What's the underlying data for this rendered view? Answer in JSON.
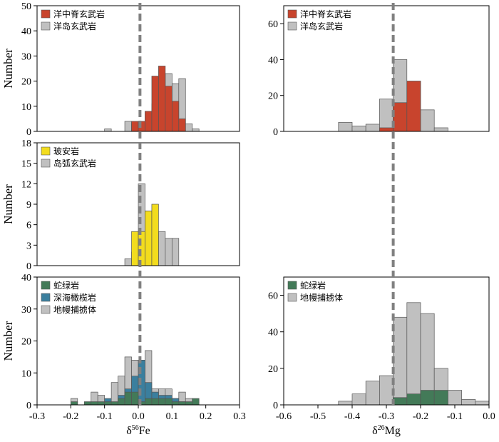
{
  "colors": {
    "mid_ocean_ridge": "#c8442d",
    "ocean_island": "#c0c0c0",
    "boninite": "#f2dc1e",
    "island_arc": "#c0c0c0",
    "ophiolite": "#437a58",
    "abyssal_peridotite": "#3b7f9e",
    "mantle_xenolith": "#c0c0c0",
    "ref_line": "#808080"
  },
  "x_axis_labels": {
    "fe": "δ56Fe",
    "mg": "δ26Mg"
  },
  "chart_data": [
    {
      "id": "fe_basalt",
      "type": "bar",
      "subtype": "stacked-histogram",
      "ylabel": "Number",
      "xlim": [
        -0.3,
        0.3
      ],
      "ylim": [
        0,
        50
      ],
      "yticks": [
        0,
        10,
        20,
        30,
        40,
        50
      ],
      "legend": [
        "洋中脊玄武岩",
        "洋岛玄武岩"
      ],
      "legend_placement": "top-left",
      "bin_width": 0.02,
      "series": [
        {
          "name": "洋中脊玄武岩",
          "color_key": "mid_ocean_ridge",
          "bins": [
            -0.02,
            0.0,
            0.02,
            0.04,
            0.06,
            0.08,
            0.1,
            0.12
          ],
          "values": [
            4,
            4,
            8,
            22,
            26,
            18,
            12,
            5
          ]
        },
        {
          "name": "洋岛玄武岩",
          "color_key": "ocean_island",
          "bins": [
            -0.1,
            -0.04,
            -0.02,
            0.0,
            0.02,
            0.04,
            0.06,
            0.08,
            0.1,
            0.12,
            0.14,
            0.16
          ],
          "values": [
            1,
            4,
            3,
            2,
            8,
            11,
            7,
            23,
            19,
            21,
            3,
            1
          ]
        }
      ]
    },
    {
      "id": "fe_arc",
      "type": "bar",
      "subtype": "stacked-histogram",
      "ylabel": "Number",
      "xlim": [
        -0.3,
        0.3
      ],
      "ylim": [
        0,
        18
      ],
      "yticks": [
        0,
        3,
        6,
        9,
        12,
        15,
        18
      ],
      "legend": [
        "玻安岩",
        "岛弧玄武岩"
      ],
      "legend_placement": "top-left",
      "bin_width": 0.02,
      "series": [
        {
          "name": "玻安岩",
          "color_key": "boninite",
          "bins": [
            -0.02,
            0.0,
            0.02,
            0.04
          ],
          "values": [
            5,
            5,
            8,
            9
          ]
        },
        {
          "name": "岛弧玄武岩",
          "color_key": "island_arc",
          "bins": [
            -0.04,
            -0.02,
            0.0,
            0.02,
            0.04,
            0.06,
            0.08,
            0.1
          ],
          "values": [
            1,
            2,
            12,
            8,
            3,
            5,
            4,
            4
          ]
        }
      ]
    },
    {
      "id": "fe_mantle",
      "type": "bar",
      "subtype": "stacked-histogram",
      "ylabel": "Number",
      "xlabel_key": "fe",
      "xlim": [
        -0.3,
        0.3
      ],
      "ylim": [
        0,
        40
      ],
      "yticks": [
        0,
        10,
        20,
        30,
        40
      ],
      "xticks": [
        "-0.3",
        "-0.2",
        "-0.1",
        "0.0",
        "0.1",
        "0.2",
        "0.3"
      ],
      "legend": [
        "蛇绿岩",
        "深海橄榄岩",
        "地幔捕掳体"
      ],
      "legend_placement": "top-left",
      "bin_width": 0.02,
      "series": [
        {
          "name": "蛇绿岩",
          "color_key": "ophiolite",
          "bins": [
            -0.2,
            -0.18,
            -0.16,
            -0.14,
            -0.12,
            -0.1,
            -0.08,
            -0.06,
            -0.04,
            -0.02,
            0.0,
            0.02,
            0.04,
            0.06,
            0.08,
            0.1,
            0.12,
            0.14,
            0.16
          ],
          "values": [
            1,
            0,
            1,
            1,
            1,
            1,
            1,
            2,
            4,
            4,
            1,
            2,
            2,
            2,
            2,
            1,
            1,
            1,
            2
          ]
        },
        {
          "name": "深海橄榄岩",
          "color_key": "abyssal_peridotite",
          "bins": [
            -0.1,
            -0.06,
            -0.04,
            -0.02,
            0.0,
            0.02,
            0.04,
            0.06,
            0.08,
            0.1,
            0.12
          ],
          "values": [
            2,
            3,
            5,
            9,
            14,
            7,
            4,
            3,
            3,
            2,
            1
          ]
        },
        {
          "name": "地幔捕掳体",
          "color_key": "mantle_xenolith",
          "bins": [
            -0.2,
            -0.14,
            -0.12,
            -0.08,
            -0.06,
            -0.04,
            -0.02,
            0.0,
            0.02,
            0.04,
            0.06,
            0.08,
            0.1,
            0.12,
            0.14
          ],
          "values": [
            2,
            4,
            3,
            7,
            9,
            15,
            14,
            9,
            17,
            5,
            5,
            5,
            2,
            4,
            2
          ]
        }
      ]
    },
    {
      "id": "mg_basalt",
      "type": "bar",
      "subtype": "stacked-histogram",
      "xlim": [
        -0.6,
        0.0
      ],
      "ylim": [
        0,
        70
      ],
      "yticks": [
        0,
        20,
        40,
        60
      ],
      "legend": [
        "洋中脊玄武岩",
        "洋岛玄武岩"
      ],
      "legend_placement": "top-left",
      "bin_width": 0.04,
      "series": [
        {
          "name": "洋中脊玄武岩",
          "color_key": "mid_ocean_ridge",
          "bins": [
            -0.32,
            -0.28,
            -0.24
          ],
          "values": [
            2,
            16,
            28
          ]
        },
        {
          "name": "洋岛玄武岩",
          "color_key": "ocean_island",
          "bins": [
            -0.44,
            -0.4,
            -0.36,
            -0.32,
            -0.28,
            -0.24,
            -0.2,
            -0.16
          ],
          "values": [
            5,
            3,
            4,
            18,
            40,
            28,
            12,
            2
          ]
        }
      ]
    },
    {
      "id": "mg_mantle",
      "type": "bar",
      "subtype": "stacked-histogram",
      "xlabel_key": "mg",
      "xlim": [
        -0.6,
        0.0
      ],
      "ylim": [
        0,
        70
      ],
      "yticks": [
        0,
        20,
        40,
        60
      ],
      "xticks": [
        "-0.6",
        "-0.5",
        "-0.4",
        "-0.3",
        "-0.2",
        "-0.1",
        "0.0"
      ],
      "legend": [
        "蛇绿岩",
        "地幔捕掳体"
      ],
      "legend_placement": "top-left",
      "bin_width": 0.04,
      "series": [
        {
          "name": "蛇绿岩",
          "color_key": "ophiolite",
          "bins": [
            -0.28,
            -0.24,
            -0.2,
            -0.16
          ],
          "values": [
            4,
            6,
            8,
            8
          ]
        },
        {
          "name": "地幔捕掳体",
          "color_key": "mantle_xenolith",
          "bins": [
            -0.44,
            -0.4,
            -0.36,
            -0.32,
            -0.28,
            -0.24,
            -0.2,
            -0.16,
            -0.12,
            -0.08,
            -0.04
          ],
          "values": [
            2,
            6,
            13,
            16,
            48,
            56,
            50,
            20,
            8,
            3,
            2
          ]
        }
      ]
    }
  ],
  "reference_lines": {
    "fe_x": 0.005,
    "mg_x": -0.28
  }
}
